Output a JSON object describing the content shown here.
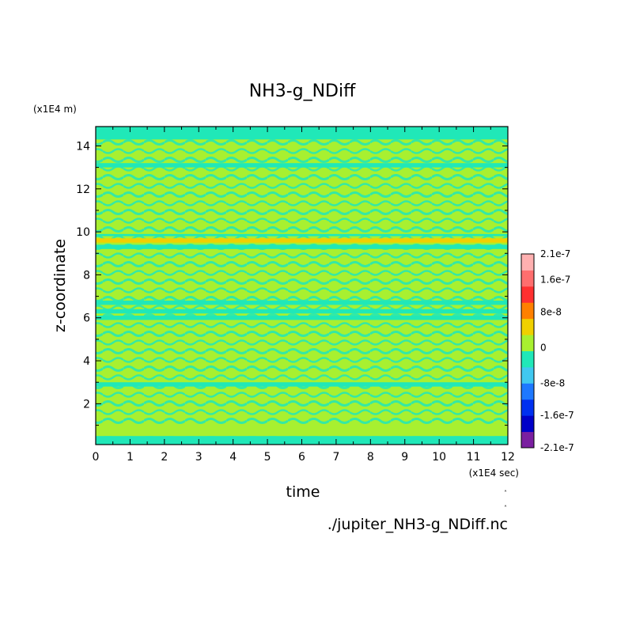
{
  "chart_data": {
    "type": "heatmap",
    "title": "NH3-g_NDiff",
    "xlabel": "time",
    "ylabel": "z-coordinate",
    "x_unit": "(x1E4 sec)",
    "y_unit": "(x1E4 m)",
    "xlim": [
      0,
      12
    ],
    "ylim": [
      0.1,
      14.9
    ],
    "x_ticks": [
      "0",
      "1",
      "2",
      "3",
      "4",
      "5",
      "6",
      "7",
      "8",
      "9",
      "10",
      "11",
      "12"
    ],
    "y_ticks": [
      "2",
      "4",
      "6",
      "8",
      "10",
      "12",
      "14"
    ],
    "colorbar": {
      "levels": [
        -2.1e-07,
        -1.6e-07,
        -1.2e-07,
        -8e-08,
        -4e-08,
        0,
        4e-08,
        8e-08,
        1.2e-07,
        1.6e-07,
        2.1e-07
      ],
      "tick_labels": [
        "2.1e-7",
        "1.6e-7",
        "8e-8",
        "0",
        "-8e-8",
        "-1.6e-7",
        "-2.1e-7"
      ],
      "colors": [
        "#7a1fa0",
        "#0000c8",
        "#0030f0",
        "#1e78ff",
        "#40c8f0",
        "#20e8b8",
        "#a8f030",
        "#f0d000",
        "#ff8000",
        "#ff3030",
        "#ff6e6e",
        "#ffb0b0"
      ]
    },
    "bands": [
      {
        "y_range": [
          0.1,
          0.5
        ],
        "value": -2e-08
      },
      {
        "y_range": [
          0.5,
          1.0
        ],
        "value": 2e-08
      },
      {
        "y_range": [
          2.8,
          3.0
        ],
        "value": -2e-08
      },
      {
        "y_range": [
          5.9,
          6.1
        ],
        "value": -2e-08
      },
      {
        "y_range": [
          6.2,
          6.4
        ],
        "value": -2e-08
      },
      {
        "y_range": [
          6.6,
          6.8
        ],
        "value": -2e-08
      },
      {
        "y_range": [
          9.2,
          9.4
        ],
        "value": -2e-08
      },
      {
        "y_range": [
          9.5,
          9.7
        ],
        "value": 6e-08
      },
      {
        "y_range": [
          9.8,
          9.9
        ],
        "value": -2e-08
      },
      {
        "y_range": [
          13.0,
          13.2
        ],
        "value": -2e-08
      },
      {
        "y_range": [
          14.3,
          14.9
        ],
        "value": -2e-08
      }
    ],
    "grid": false
  },
  "file_label": "./jupiter_NH3-g_NDiff.nc"
}
